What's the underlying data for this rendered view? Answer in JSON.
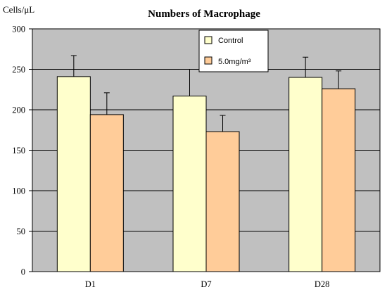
{
  "chart_data": {
    "type": "bar",
    "title": "Numbers of Macrophage",
    "ylabel": "Cells/μL",
    "xlabel": "",
    "categories": [
      "D1",
      "D7",
      "D28"
    ],
    "ylim": [
      0,
      300
    ],
    "yticks": [
      0,
      50,
      100,
      150,
      200,
      250,
      300
    ],
    "grid": true,
    "legend_position": "top-right",
    "background_color": "#c0c0c0",
    "series": [
      {
        "name": "Control",
        "color": "#ffffcc",
        "values": [
          241,
          217,
          240
        ],
        "error": [
          26,
          33,
          25
        ]
      },
      {
        "name": "5.0mg/m³",
        "color": "#ffcc99",
        "values": [
          194,
          173,
          226
        ],
        "error": [
          27,
          20,
          22
        ]
      }
    ]
  }
}
